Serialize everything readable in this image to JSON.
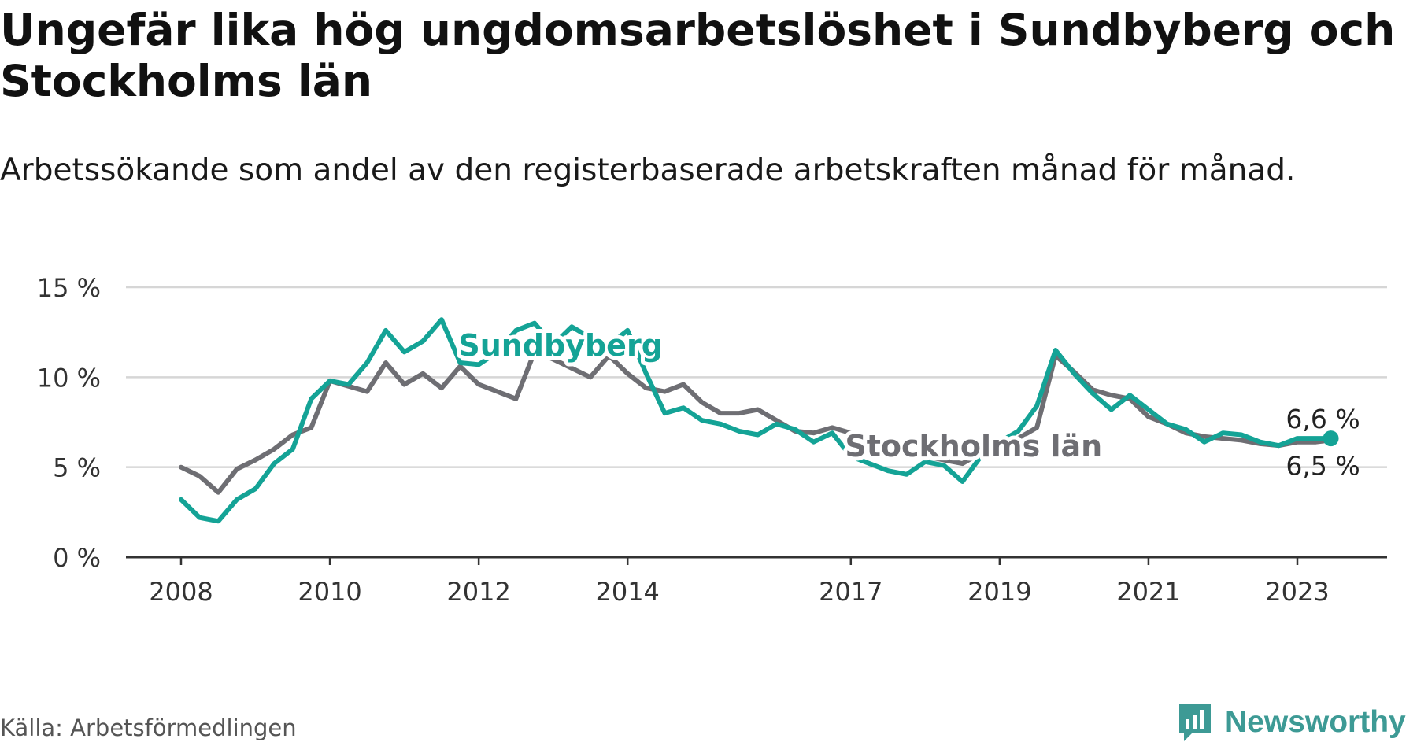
{
  "header": {
    "title": "Ungefär lika hög ungdomsarbetslöshet i Sundbyberg och Stockholms län",
    "subtitle": "Arbetssökande som andel av den registerbaserade arbetskraften månad för månad."
  },
  "footer": {
    "source": "Källa: Arbetsförmedlingen",
    "brand": "Newsworthy"
  },
  "colors": {
    "sundbyberg": "#14a396",
    "stockholm": "#6e6e73",
    "grid": "#d6d6d6",
    "axis": "#333333",
    "brand": "#3d9a95"
  },
  "chart_data": {
    "type": "line",
    "title": "Ungefär lika hög ungdomsarbetslöshet i Sundbyberg och Stockholms län",
    "subtitle": "Arbetssökande som andel av den registerbaserade arbetskraften månad för månad.",
    "xlabel": "",
    "ylabel": "",
    "unit": "%",
    "xlim": [
      2008,
      2024.5
    ],
    "ylim": [
      0,
      15
    ],
    "yticks": [
      0,
      5,
      10,
      15
    ],
    "ytick_labels": [
      "0 %",
      "5 %",
      "10 %",
      "15 %"
    ],
    "xticks": [
      2008,
      2010,
      2012,
      2014,
      2017,
      2019,
      2021,
      2023
    ],
    "xtick_labels": [
      "2008",
      "2010",
      "2012",
      "2014",
      "2017",
      "2019",
      "2021",
      "2023"
    ],
    "grid": true,
    "legend": "inline labels",
    "series": [
      {
        "name": "Sundbyberg",
        "label": "Sundbyberg",
        "end_label": "6,6 %",
        "x": [
          2008,
          2008.25,
          2008.5,
          2008.75,
          2009,
          2009.25,
          2009.5,
          2009.75,
          2010,
          2010.25,
          2010.5,
          2010.75,
          2011,
          2011.25,
          2011.5,
          2011.75,
          2012,
          2012.25,
          2012.5,
          2012.75,
          2013,
          2013.25,
          2013.5,
          2013.75,
          2014,
          2014.25,
          2014.5,
          2014.75,
          2015,
          2015.25,
          2015.5,
          2015.75,
          2016,
          2016.25,
          2016.5,
          2016.75,
          2017,
          2017.25,
          2017.5,
          2017.75,
          2018,
          2018.25,
          2018.5,
          2018.75,
          2019,
          2019.25,
          2019.5,
          2019.75,
          2020,
          2020.25,
          2020.5,
          2020.75,
          2021,
          2021.25,
          2021.5,
          2021.75,
          2022,
          2022.25,
          2022.5,
          2022.75,
          2023,
          2023.25,
          2023.45
        ],
        "values": [
          3.2,
          2.2,
          2.0,
          3.2,
          3.8,
          5.2,
          6.0,
          8.8,
          9.8,
          9.6,
          10.8,
          12.6,
          11.4,
          12.0,
          13.2,
          10.8,
          10.7,
          11.4,
          12.6,
          13.0,
          11.8,
          12.8,
          12.2,
          11.8,
          12.6,
          10.2,
          8.0,
          8.3,
          7.6,
          7.4,
          7.0,
          6.8,
          7.4,
          7.1,
          6.4,
          6.9,
          5.6,
          5.2,
          4.8,
          4.6,
          5.3,
          5.1,
          4.2,
          5.6,
          6.4,
          7.0,
          8.4,
          11.5,
          10.2,
          9.1,
          8.2,
          9.0,
          8.2,
          7.4,
          7.1,
          6.4,
          6.9,
          6.8,
          6.4,
          6.2,
          6.6,
          6.6,
          6.6
        ]
      },
      {
        "name": "Stockholms län",
        "label": "Stockholms län",
        "end_label": "6,5 %",
        "x": [
          2008,
          2008.25,
          2008.5,
          2008.75,
          2009,
          2009.25,
          2009.5,
          2009.75,
          2010,
          2010.25,
          2010.5,
          2010.75,
          2011,
          2011.25,
          2011.5,
          2011.75,
          2012,
          2012.25,
          2012.5,
          2012.75,
          2013,
          2013.25,
          2013.5,
          2013.75,
          2014,
          2014.25,
          2014.5,
          2014.75,
          2015,
          2015.25,
          2015.5,
          2015.75,
          2016,
          2016.25,
          2016.5,
          2016.75,
          2017,
          2017.25,
          2017.5,
          2017.75,
          2018,
          2018.25,
          2018.5,
          2018.75,
          2019,
          2019.25,
          2019.5,
          2019.75,
          2020,
          2020.25,
          2020.5,
          2020.75,
          2021,
          2021.25,
          2021.5,
          2021.75,
          2022,
          2022.25,
          2022.5,
          2022.75,
          2023,
          2023.25,
          2023.45
        ],
        "values": [
          5.0,
          4.5,
          3.6,
          4.9,
          5.4,
          6.0,
          6.8,
          7.2,
          9.8,
          9.5,
          9.2,
          10.8,
          9.6,
          10.2,
          9.4,
          10.6,
          9.6,
          9.2,
          8.8,
          11.4,
          11.0,
          10.5,
          10.0,
          11.2,
          10.2,
          9.4,
          9.2,
          9.6,
          8.6,
          8.0,
          8.0,
          8.2,
          7.6,
          7.0,
          6.9,
          7.2,
          6.9,
          6.5,
          6.0,
          5.8,
          5.6,
          5.4,
          5.2,
          5.8,
          6.0,
          6.6,
          7.2,
          11.2,
          10.3,
          9.3,
          9.0,
          8.8,
          7.8,
          7.4,
          6.9,
          6.7,
          6.6,
          6.5,
          6.3,
          6.2,
          6.4,
          6.4,
          6.5
        ]
      }
    ]
  }
}
